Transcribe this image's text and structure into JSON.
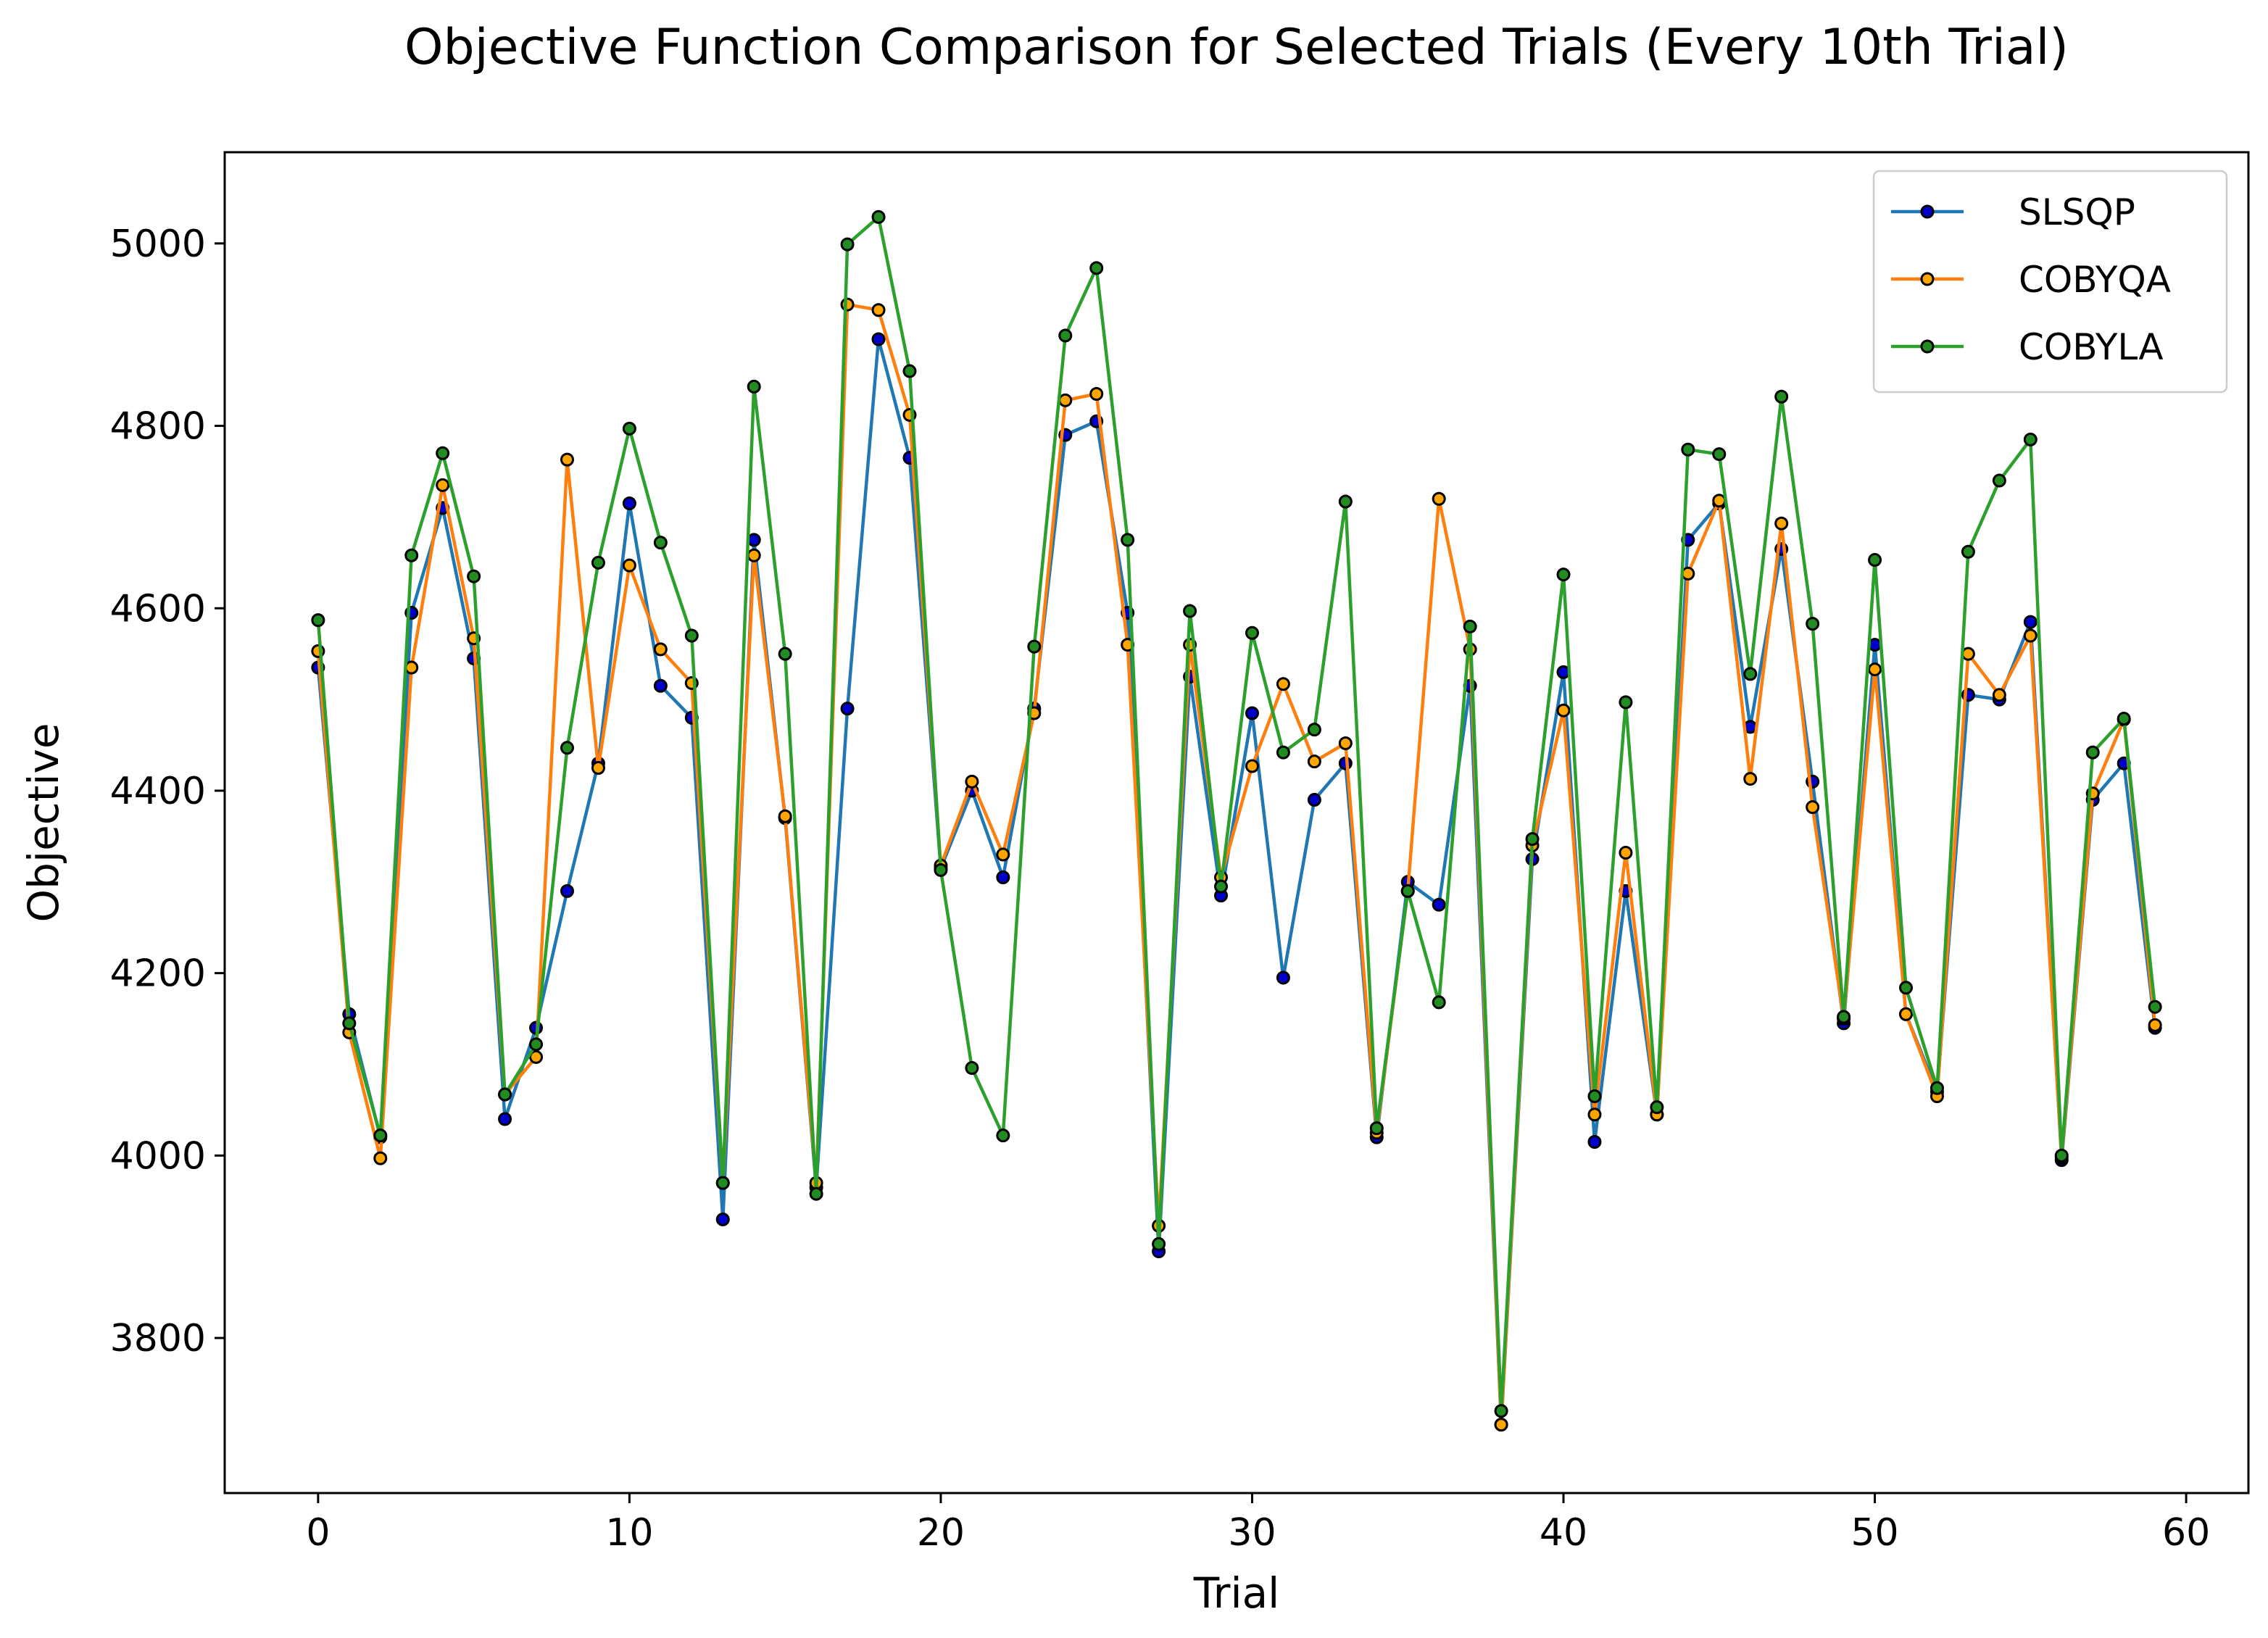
{
  "chart_data": {
    "type": "line",
    "title": "Objective Function Comparison for Selected Trials (Every 10th Trial)",
    "xlabel": "Trial",
    "ylabel": "Objective",
    "xlim": [
      -3,
      62
    ],
    "ylim": [
      3630,
      5100
    ],
    "xticks": [
      0,
      10,
      20,
      30,
      40,
      50,
      60
    ],
    "yticks": [
      3800,
      4000,
      4200,
      4400,
      4600,
      4800,
      5000
    ],
    "grid": false,
    "legend_position": "top-right",
    "x": [
      0,
      1,
      2,
      3,
      4,
      5,
      6,
      7,
      8,
      9,
      10,
      11,
      12,
      13,
      14,
      15,
      16,
      17,
      18,
      19,
      20,
      21,
      22,
      23,
      24,
      25,
      26,
      27,
      28,
      29,
      30,
      31,
      32,
      33,
      34,
      35,
      36,
      37,
      38,
      39,
      40,
      41,
      42,
      43,
      44,
      45,
      46,
      47,
      48,
      49,
      50,
      51,
      52,
      53,
      54,
      55,
      56,
      57,
      58,
      59
    ],
    "series": [
      {
        "name": "SLSQP",
        "color": "#1f77b4",
        "marker_face": "#0000cc",
        "values": [
          4535,
          4155,
          4020,
          4595,
          4710,
          4545,
          4040,
          4140,
          4290,
          4430,
          4715,
          4515,
          4480,
          3930,
          4675,
          4370,
          3965,
          4490,
          4895,
          4765,
          4315,
          4400,
          4305,
          4490,
          4790,
          4805,
          4595,
          3895,
          4525,
          4285,
          4485,
          4195,
          4390,
          4430,
          4020,
          4300,
          4275,
          4515,
          3705,
          4325,
          4530,
          4015,
          4290,
          4045,
          4675,
          4715,
          4470,
          4665,
          4410,
          4145,
          4560,
          4155,
          4070,
          4505,
          4500,
          4585,
          3995,
          4390,
          4430,
          4140
        ]
      },
      {
        "name": "COBYQA",
        "color": "#ff7f0e",
        "marker_face": "#ffa500",
        "values": [
          4553,
          4135,
          3997,
          4535,
          4735,
          4567,
          4067,
          4108,
          4763,
          4425,
          4647,
          4555,
          4518,
          3970,
          4658,
          4372,
          3970,
          4933,
          4927,
          4812,
          4318,
          4410,
          4330,
          4485,
          4828,
          4835,
          4560,
          3923,
          4560,
          4305,
          4427,
          4517,
          4432,
          4452,
          4025,
          4290,
          4720,
          4555,
          3705,
          4340,
          4488,
          4045,
          4332,
          4045,
          4638,
          4718,
          4413,
          4693,
          4382,
          4150,
          4533,
          4155,
          4065,
          4550,
          4505,
          4570,
          3998,
          4397,
          4478,
          4143
        ]
      },
      {
        "name": "COBYLA",
        "color": "#2ca02c",
        "marker_face": "#228b22",
        "values": [
          4587,
          4145,
          4022,
          4658,
          4770,
          4635,
          4067,
          4122,
          4447,
          4650,
          4797,
          4672,
          4570,
          3970,
          4843,
          4550,
          3958,
          4999,
          5029,
          4860,
          4313,
          4096,
          4022,
          4558,
          4899,
          4973,
          4675,
          3903,
          4597,
          4295,
          4573,
          4442,
          4467,
          4717,
          4030,
          4290,
          4168,
          4580,
          3720,
          4347,
          4637,
          4065,
          4497,
          4053,
          4774,
          4769,
          4528,
          4832,
          4583,
          4152,
          4653,
          4184,
          4074,
          4662,
          4740,
          4785,
          4000,
          4442,
          4479,
          4163
        ]
      }
    ]
  }
}
